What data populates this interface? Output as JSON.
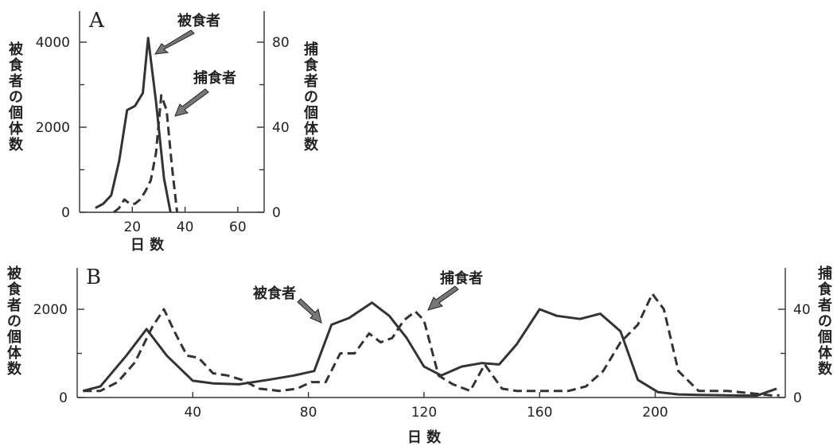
{
  "chart_data": [
    {
      "type": "line",
      "panel": "A",
      "xlabel": "日 数",
      "ylabel_left": "被食者の個体数",
      "ylabel_right": "捕食者の個体数",
      "xlim": [
        0,
        70
      ],
      "ylim_left": [
        0,
        4000
      ],
      "ylim_right": [
        0,
        80
      ],
      "x_ticks": [
        20,
        40,
        60
      ],
      "y_ticks_left": [
        0,
        2000,
        4000
      ],
      "y_ticks_right": [
        0,
        40,
        80
      ],
      "series": [
        {
          "name": "被食者",
          "axis": "left",
          "style": "solid",
          "x": [
            6,
            9,
            12,
            15,
            18,
            21,
            24,
            26,
            29,
            32,
            34.5
          ],
          "y": [
            100,
            200,
            400,
            1200,
            2400,
            2500,
            2800,
            4100,
            2600,
            800,
            0
          ]
        },
        {
          "name": "捕食者",
          "axis": "right",
          "style": "dashed",
          "x": [
            13,
            15,
            17,
            19,
            21,
            23,
            25,
            27,
            29,
            31,
            33,
            35,
            37
          ],
          "y": [
            0,
            2,
            6,
            4,
            4,
            6,
            10,
            15,
            28,
            55,
            48,
            22,
            0
          ]
        }
      ],
      "annotations": [
        {
          "text": "被食者",
          "target": "被食者"
        },
        {
          "text": "捕食者",
          "target": "捕食者"
        }
      ]
    },
    {
      "type": "line",
      "panel": "B",
      "xlabel": "日 数",
      "ylabel_left": "被食者の個体数",
      "ylabel_right": "捕食者の個体数",
      "xlim": [
        0,
        245
      ],
      "ylim_left": [
        0,
        2800
      ],
      "ylim_right": [
        0,
        56
      ],
      "x_ticks": [
        40,
        80,
        120,
        160,
        200
      ],
      "y_ticks_left": [
        0,
        2000
      ],
      "y_ticks_right": [
        0,
        40
      ],
      "series": [
        {
          "name": "被食者",
          "axis": "left",
          "style": "solid",
          "x": [
            2,
            8,
            17,
            24,
            31,
            40,
            47,
            56,
            66,
            75,
            82,
            88,
            94,
            102,
            108,
            114,
            120,
            126,
            133,
            140,
            146,
            152,
            160,
            166,
            174,
            181,
            188,
            194,
            201,
            208,
            215,
            225,
            235,
            242
          ],
          "y": [
            150,
            250,
            950,
            1550,
            950,
            380,
            320,
            300,
            400,
            500,
            600,
            1650,
            1800,
            2150,
            1850,
            1350,
            700,
            500,
            700,
            780,
            750,
            1200,
            2000,
            1850,
            1780,
            1900,
            1500,
            400,
            120,
            70,
            60,
            50,
            40,
            200
          ]
        },
        {
          "name": "捕食者",
          "axis": "right",
          "style": "dashed",
          "x": [
            2,
            8,
            14,
            20,
            26,
            30,
            34,
            38,
            42,
            47,
            52,
            57,
            63,
            70,
            76,
            81,
            86,
            91,
            96,
            101,
            105,
            109,
            113,
            117,
            120,
            125,
            130,
            136,
            141,
            147,
            152,
            158,
            164,
            170,
            176,
            182,
            188,
            194,
            199,
            203,
            208,
            215,
            225,
            240,
            243
          ],
          "y": [
            3,
            3,
            7,
            16,
            32,
            40,
            29,
            19,
            18,
            11,
            10,
            8,
            4,
            3,
            4,
            7,
            7,
            20,
            20,
            29,
            25,
            27,
            35,
            39,
            35,
            10,
            6,
            3,
            15,
            4,
            3,
            3,
            3,
            3,
            5,
            12,
            25,
            33,
            47,
            40,
            12,
            3,
            3,
            1,
            1
          ]
        }
      ],
      "annotations": [
        {
          "text": "被食者",
          "target": "被食者"
        },
        {
          "text": "捕食者",
          "target": "捕食者"
        }
      ]
    }
  ]
}
